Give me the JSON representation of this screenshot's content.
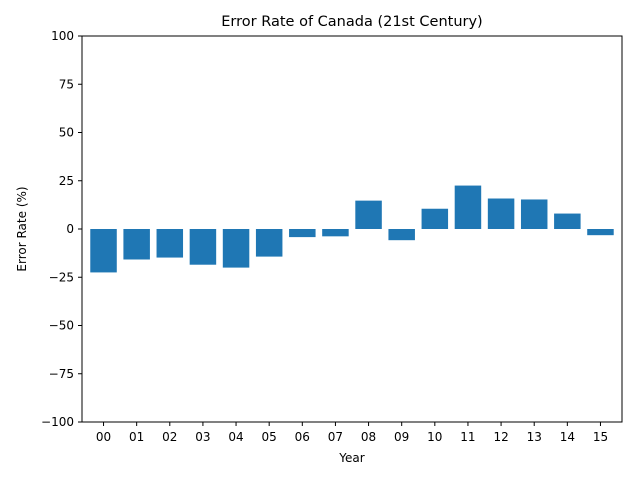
{
  "chart_data": {
    "type": "bar",
    "title": "Error Rate of Canada (21st Century)",
    "xlabel": "Year",
    "ylabel": "Error Rate (%)",
    "categories": [
      "00",
      "01",
      "02",
      "03",
      "04",
      "05",
      "06",
      "07",
      "08",
      "09",
      "10",
      "11",
      "12",
      "13",
      "14",
      "15"
    ],
    "values": [
      -22.5,
      -15.8,
      -14.8,
      -18.5,
      -20.0,
      -14.3,
      -4.2,
      -3.8,
      14.7,
      -5.8,
      10.5,
      22.5,
      15.8,
      15.3,
      8.0,
      -3.2
    ],
    "ylim": [
      -100,
      100
    ],
    "yticks": [
      100,
      75,
      50,
      25,
      0,
      -25,
      -50,
      -75,
      -100
    ],
    "ytick_labels": [
      "100",
      "75",
      "50",
      "25",
      "0",
      "−25",
      "−50",
      "−75",
      "−100"
    ],
    "bar_color": "#1f77b4",
    "grid": false,
    "legend": "none"
  }
}
